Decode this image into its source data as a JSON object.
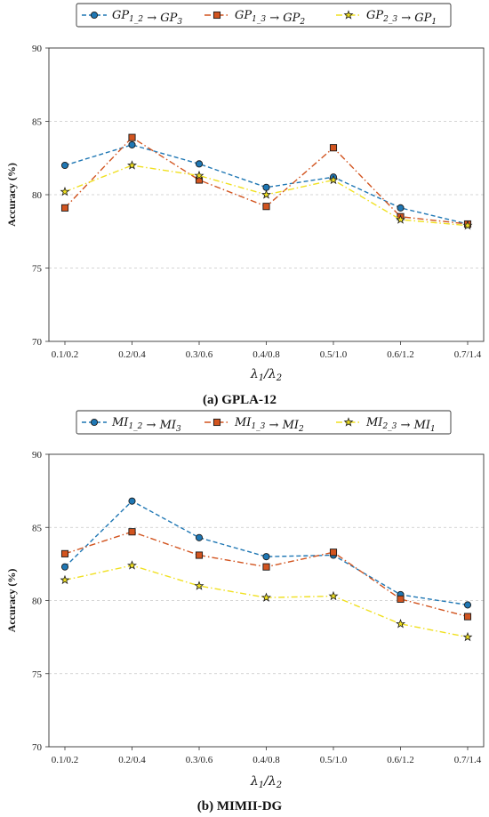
{
  "chart_data": [
    {
      "type": "line",
      "caption": "(a) GPLA-12",
      "xlabel": "λ1/λ2",
      "ylabel": "Accuracy (%)",
      "categories": [
        "0.1/0.2",
        "0.2/0.4",
        "0.3/0.6",
        "0.4/0.8",
        "0.5/1.0",
        "0.6/1.2",
        "0.7/1.4"
      ],
      "ylim": [
        70,
        90
      ],
      "yticks": [
        "70",
        "75",
        "80",
        "85",
        "90"
      ],
      "grid": "horizontal dashed",
      "legend_position": "top",
      "series": [
        {
          "name": "GP1_2 → GP3",
          "color": "#1f77b4",
          "marker": "circle",
          "style": "dashed",
          "values": [
            82.0,
            83.4,
            82.1,
            80.5,
            81.2,
            79.1,
            78.0
          ]
        },
        {
          "name": "GP1_3 → GP2",
          "color": "#d2541f",
          "marker": "square",
          "style": "dashdot",
          "values": [
            79.1,
            83.9,
            81.0,
            79.2,
            83.2,
            78.5,
            78.0
          ]
        },
        {
          "name": "GP2_3 → GP1",
          "color": "#f0e020",
          "marker": "star",
          "style": "dashdot",
          "values": [
            80.2,
            82.0,
            81.3,
            80.0,
            81.0,
            78.3,
            77.9
          ]
        }
      ]
    },
    {
      "type": "line",
      "caption": "(b) MIMII-DG",
      "xlabel": "λ1/λ2",
      "ylabel": "Accuracy (%)",
      "categories": [
        "0.1/0.2",
        "0.2/0.4",
        "0.3/0.6",
        "0.4/0.8",
        "0.5/1.0",
        "0.6/1.2",
        "0.7/1.4"
      ],
      "ylim": [
        70,
        90
      ],
      "yticks": [
        "70",
        "75",
        "80",
        "85",
        "90"
      ],
      "grid": "horizontal dashed",
      "legend_position": "top",
      "series": [
        {
          "name": "MI1_2 → MI3",
          "color": "#1f77b4",
          "marker": "circle",
          "style": "dashed",
          "values": [
            82.3,
            86.8,
            84.3,
            83.0,
            83.1,
            80.4,
            79.7
          ]
        },
        {
          "name": "MI1_3 → MI2",
          "color": "#d2541f",
          "marker": "square",
          "style": "dashdot",
          "values": [
            83.2,
            84.7,
            83.1,
            82.3,
            83.3,
            80.1,
            78.9
          ]
        },
        {
          "name": "MI2_3 → MI1",
          "color": "#f0e020",
          "marker": "star",
          "style": "dashdot",
          "values": [
            81.4,
            82.4,
            81.0,
            80.2,
            80.3,
            78.4,
            77.5
          ]
        }
      ]
    }
  ]
}
